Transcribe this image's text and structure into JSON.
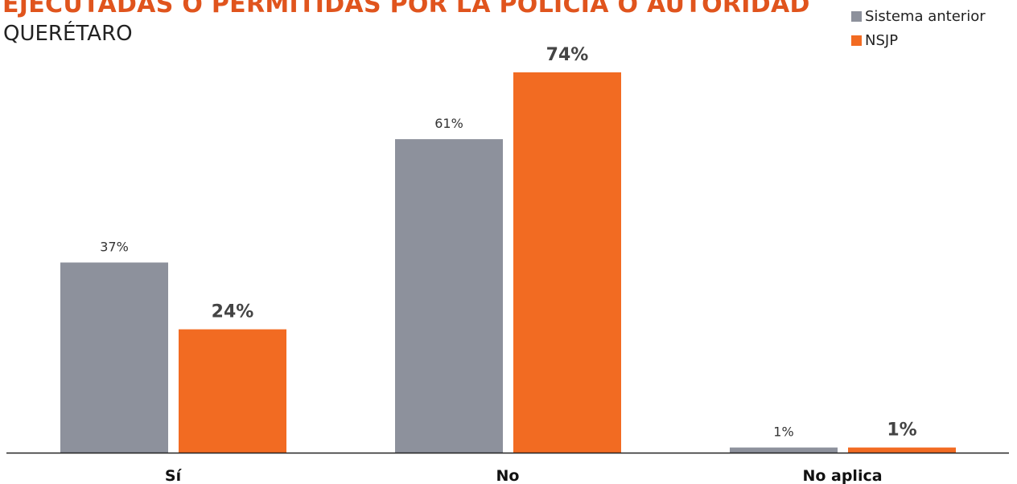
{
  "chart_data": {
    "type": "bar",
    "title": "EJECUTADAS O PERMITIDAS POR LA POLICÍA O AUTORIDAD",
    "subtitle": "QUERÉTARO",
    "categories": [
      "Sí",
      "No",
      "No aplica"
    ],
    "series": [
      {
        "name": "Sistema anterior",
        "values": [
          37,
          61,
          1
        ],
        "labels": [
          "37%",
          "61%",
          "1%"
        ],
        "color": "#8d919c"
      },
      {
        "name": "NSJP",
        "values": [
          24,
          74,
          1
        ],
        "labels": [
          "24%",
          "74%",
          "1%"
        ],
        "color": "#f26b22"
      }
    ],
    "ylim": [
      0,
      76
    ],
    "grid": false,
    "legend_position": "top-right"
  }
}
